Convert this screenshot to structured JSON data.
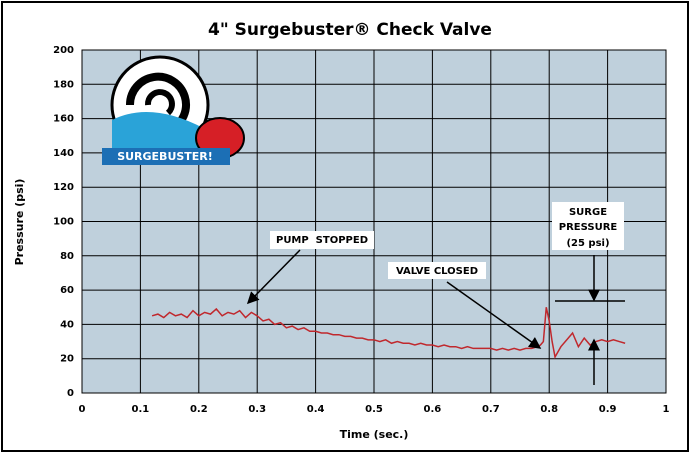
{
  "chart_data": {
    "type": "line",
    "title": "4\" Surgebuster® Check Valve",
    "x_label": "Time (sec.)",
    "y_label": "Pressure (psi)",
    "logo_text": "SURGEBUSTER!",
    "annotations": [
      "PUMP  STOPPED",
      "VALVE CLOSED"
    ],
    "surge_annotation": [
      "SURGE",
      "PRESSURE",
      "(25 psi)"
    ],
    "xlim": [
      0,
      1
    ],
    "xticks": [
      0,
      0.1,
      0.2,
      0.3,
      0.4,
      0.5,
      0.6,
      0.7,
      0.8,
      0.9,
      1
    ],
    "ylim": [
      0,
      200
    ],
    "yticks": [
      0,
      20,
      40,
      60,
      80,
      100,
      120,
      140,
      160,
      180,
      200
    ],
    "grid": true,
    "plot_background": "#bfd0dc",
    "x": [
      0.12,
      0.13,
      0.14,
      0.15,
      0.16,
      0.17,
      0.18,
      0.19,
      0.2,
      0.21,
      0.22,
      0.23,
      0.24,
      0.25,
      0.26,
      0.27,
      0.28,
      0.29,
      0.3,
      0.31,
      0.32,
      0.33,
      0.34,
      0.35,
      0.36,
      0.37,
      0.38,
      0.39,
      0.4,
      0.41,
      0.42,
      0.43,
      0.44,
      0.45,
      0.46,
      0.47,
      0.48,
      0.49,
      0.5,
      0.51,
      0.52,
      0.53,
      0.54,
      0.55,
      0.56,
      0.57,
      0.58,
      0.59,
      0.6,
      0.61,
      0.62,
      0.63,
      0.64,
      0.65,
      0.66,
      0.67,
      0.68,
      0.69,
      0.7,
      0.71,
      0.72,
      0.73,
      0.74,
      0.75,
      0.76,
      0.77,
      0.78,
      0.785,
      0.79,
      0.795,
      0.8,
      0.805,
      0.81,
      0.82,
      0.83,
      0.84,
      0.85,
      0.86,
      0.87,
      0.88,
      0.89,
      0.9,
      0.91,
      0.92,
      0.93
    ],
    "series": [
      {
        "color": "#c0282d",
        "values": [
          45,
          46,
          44,
          47,
          45,
          46,
          44,
          48,
          45,
          47,
          46,
          49,
          45,
          47,
          46,
          48,
          44,
          47,
          45,
          42,
          43,
          40,
          41,
          38,
          39,
          37,
          38,
          36,
          36,
          35,
          35,
          34,
          34,
          33,
          33,
          32,
          32,
          31,
          31,
          30,
          31,
          29,
          30,
          29,
          29,
          28,
          29,
          28,
          28,
          27,
          28,
          27,
          27,
          26,
          27,
          26,
          26,
          26,
          26,
          25,
          26,
          25,
          26,
          25,
          26,
          26,
          27,
          28,
          30,
          50,
          42,
          30,
          21,
          27,
          31,
          35,
          27,
          32,
          28,
          30,
          31,
          30,
          31,
          30,
          29
        ]
      }
    ]
  }
}
